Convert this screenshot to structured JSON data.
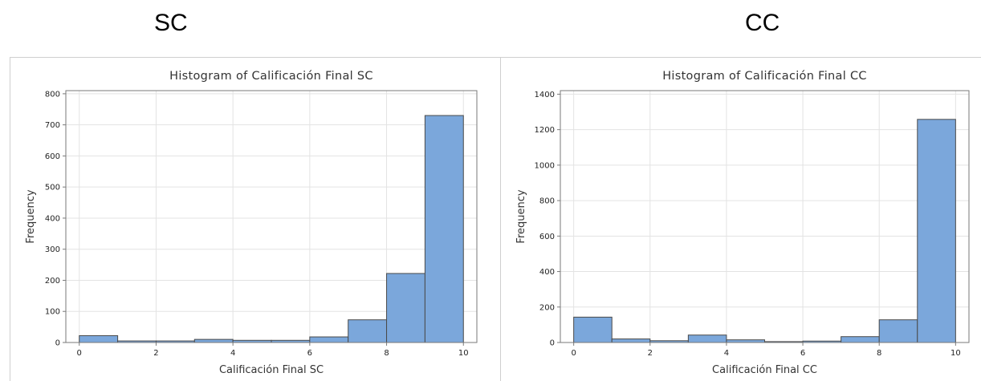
{
  "headers": {
    "left": "SC",
    "right": "CC"
  },
  "colors": {
    "bar_fill": "#7ba7db",
    "bar_stroke": "#4a4a4a",
    "grid": "#e3e3e3",
    "frame": "#7a7a7a"
  },
  "chart_data": [
    {
      "type": "bar",
      "title": "Histogram of Calificación Final SC",
      "xlabel": "Calificación Final SC",
      "ylabel": "Frequency",
      "xlim": [
        -0.35,
        10.35
      ],
      "ylim": [
        0,
        810
      ],
      "xticks": [
        0,
        2,
        4,
        6,
        8,
        10
      ],
      "xtick_labels": [
        "0",
        "2",
        "4",
        "6",
        "8",
        "10"
      ],
      "yticks": [
        0,
        100,
        200,
        300,
        400,
        500,
        600,
        700,
        800
      ],
      "ytick_labels": [
        "0",
        "100",
        "200",
        "300",
        "400",
        "500",
        "600",
        "700",
        "800"
      ],
      "bin_edges": [
        0,
        1,
        2,
        3,
        4,
        5,
        6,
        7,
        8,
        9,
        10
      ],
      "values": [
        22,
        5,
        5,
        10,
        7,
        7,
        18,
        73,
        222,
        730
      ],
      "grid": true
    },
    {
      "type": "bar",
      "title": "Histogram of Calificación Final CC",
      "xlabel": "Calificación Final CC",
      "ylabel": "Frequency",
      "xlim": [
        -0.35,
        10.35
      ],
      "ylim": [
        0,
        1420
      ],
      "xticks": [
        0,
        2,
        4,
        6,
        8,
        10
      ],
      "xtick_labels": [
        "0",
        "2",
        "4",
        "6",
        "8",
        "10"
      ],
      "yticks": [
        0,
        200,
        400,
        600,
        800,
        1000,
        1200,
        1400
      ],
      "ytick_labels": [
        "0",
        "200",
        "400",
        "600",
        "800",
        "1000",
        "1200",
        "1400"
      ],
      "bin_edges": [
        0,
        1,
        2,
        3,
        4,
        5,
        6,
        7,
        8,
        9,
        10
      ],
      "values": [
        143,
        20,
        10,
        42,
        15,
        5,
        8,
        33,
        128,
        1258
      ],
      "grid": true
    }
  ]
}
